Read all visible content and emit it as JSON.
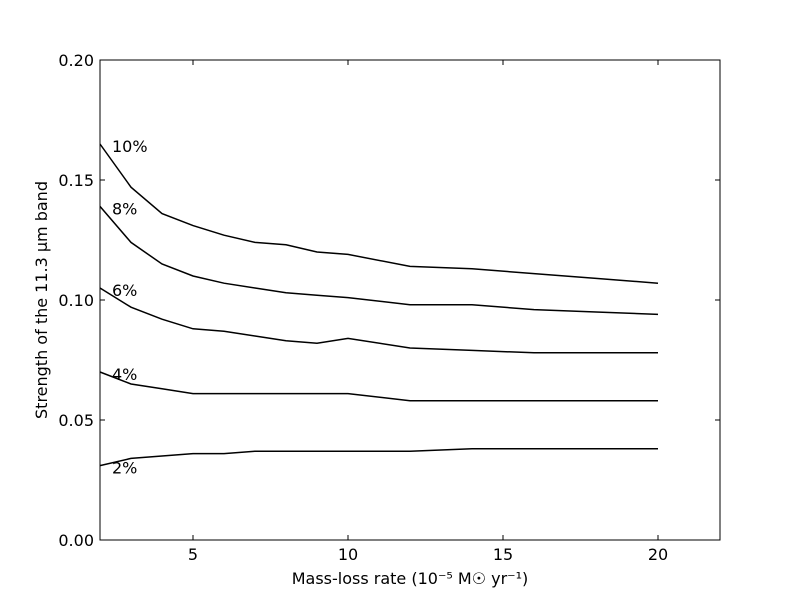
{
  "chart_data": {
    "type": "line",
    "xlabel": "Mass-loss rate (10⁻⁵ M☉ yr⁻¹)",
    "ylabel": "Strength of the 11.3 μm band",
    "xlim": [
      2,
      22
    ],
    "ylim": [
      0.0,
      0.2
    ],
    "xticks": [
      5,
      10,
      15,
      20
    ],
    "xtick_labels": [
      "5",
      "10",
      "15",
      "20"
    ],
    "yticks": [
      0.0,
      0.05,
      0.1,
      0.15,
      0.2
    ],
    "ytick_labels": [
      "0.00",
      "0.05",
      "0.10",
      "0.15",
      "0.20"
    ],
    "grid": false,
    "legend": "none",
    "line_color": "#000000",
    "x": [
      2,
      3,
      4,
      5,
      6,
      7,
      8,
      9,
      10,
      12,
      14,
      16,
      18,
      20
    ],
    "series": [
      {
        "name": "10%",
        "values": [
          0.165,
          0.147,
          0.136,
          0.131,
          0.127,
          0.124,
          0.123,
          0.12,
          0.119,
          0.114,
          0.113,
          0.111,
          0.109,
          0.107
        ]
      },
      {
        "name": "8%",
        "values": [
          0.139,
          0.124,
          0.115,
          0.11,
          0.107,
          0.105,
          0.103,
          0.102,
          0.101,
          0.098,
          0.098,
          0.096,
          0.095,
          0.094
        ]
      },
      {
        "name": "6%",
        "values": [
          0.105,
          0.097,
          0.092,
          0.088,
          0.087,
          0.085,
          0.083,
          0.082,
          0.084,
          0.08,
          0.079,
          0.078,
          0.078,
          0.078
        ]
      },
      {
        "name": "4%",
        "values": [
          0.07,
          0.065,
          0.063,
          0.061,
          0.061,
          0.061,
          0.061,
          0.061,
          0.061,
          0.058,
          0.058,
          0.058,
          0.058,
          0.058
        ]
      },
      {
        "name": "2%",
        "values": [
          0.031,
          0.034,
          0.035,
          0.036,
          0.036,
          0.037,
          0.037,
          0.037,
          0.037,
          0.037,
          0.038,
          0.038,
          0.038,
          0.038
        ]
      }
    ]
  }
}
